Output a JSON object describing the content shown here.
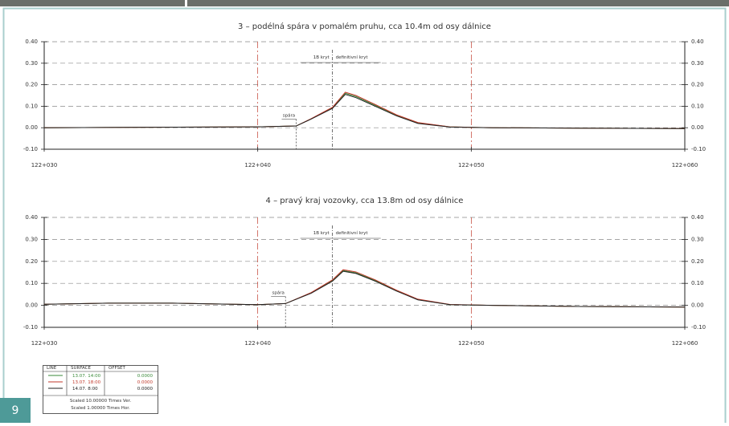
{
  "figure_number": "9",
  "chart_data": [
    {
      "type": "line",
      "title": "3 – podélná spára v pomalém pruhu, cca 10.4m od osy dálnice",
      "x": [
        122030,
        122035,
        122040,
        122041.8,
        122042.5,
        122043.5,
        122044.1,
        122044.6,
        122045.5,
        122046.5,
        122047.5,
        122049,
        122051,
        122055,
        122060
      ],
      "series": [
        {
          "name": "13.07. 14:00",
          "color": "#3a8a3a",
          "values": [
            0,
            0.002,
            0.004,
            0.008,
            0.041,
            0.092,
            0.16,
            0.145,
            0.104,
            0.058,
            0.022,
            0.004,
            0,
            -0.002,
            -0.004
          ]
        },
        {
          "name": "13.07. 18:00",
          "color": "#c0392b",
          "values": [
            0,
            0.002,
            0.004,
            0.008,
            0.042,
            0.095,
            0.165,
            0.15,
            0.108,
            0.06,
            0.024,
            0.004,
            0,
            -0.002,
            -0.004
          ]
        },
        {
          "name": "14.07. 8:00",
          "color": "#222222",
          "values": [
            0,
            0.002,
            0.004,
            0.008,
            0.04,
            0.09,
            0.155,
            0.14,
            0.1,
            0.055,
            0.02,
            0.003,
            0,
            -0.002,
            -0.004
          ]
        }
      ],
      "xlim": [
        122030,
        122060
      ],
      "xticks": [
        {
          "value": 122030,
          "label": "122+030"
        },
        {
          "value": 122040,
          "label": "122+040"
        },
        {
          "value": 122050,
          "label": "122+050"
        },
        {
          "value": 122060,
          "label": "122+060"
        }
      ],
      "ylim": [
        -0.1,
        0.4
      ],
      "yticks": [
        {
          "value": 0.4,
          "label": "0.40"
        },
        {
          "value": 0.3,
          "label": "0.30"
        },
        {
          "value": 0.2,
          "label": "0.20"
        },
        {
          "value": 0.1,
          "label": "0.10"
        },
        {
          "value": 0,
          "label": "0.00"
        },
        {
          "value": -0.1,
          "label": "-0.10"
        }
      ],
      "grid": true,
      "annotation": {
        "text": "spára",
        "x": 122041.8,
        "y": 0.04
      },
      "divider": {
        "x": 122043.5,
        "labels": [
          "1B kryt",
          "definitivní kryt"
        ]
      }
    },
    {
      "type": "line",
      "title": "4 – pravý kraj vozovky, cca 13.8m od osy dálnice",
      "x": [
        122030,
        122033,
        122036,
        122040,
        122041.3,
        122042.5,
        122043.5,
        122044.0,
        122044.6,
        122045.5,
        122046.5,
        122047.5,
        122049,
        122051,
        122055,
        122060
      ],
      "series": [
        {
          "name": "13.07. 14:00",
          "color": "#3a8a3a",
          "values": [
            0.005,
            0.01,
            0.01,
            0.003,
            0.008,
            0.057,
            0.113,
            0.158,
            0.148,
            0.113,
            0.067,
            0.026,
            0.003,
            0,
            -0.005,
            -0.008
          ]
        },
        {
          "name": "13.07. 18:00",
          "color": "#c0392b",
          "values": [
            0.005,
            0.01,
            0.01,
            0.003,
            0.008,
            0.058,
            0.116,
            0.162,
            0.152,
            0.116,
            0.069,
            0.028,
            0.004,
            0,
            -0.005,
            -0.008
          ]
        },
        {
          "name": "14.07. 8:00",
          "color": "#222222",
          "values": [
            0.005,
            0.01,
            0.01,
            0.003,
            0.008,
            0.055,
            0.11,
            0.155,
            0.145,
            0.11,
            0.065,
            0.025,
            0.003,
            0,
            -0.005,
            -0.008
          ]
        }
      ],
      "xlim": [
        122030,
        122060
      ],
      "xticks": [
        {
          "value": 122030,
          "label": "122+030"
        },
        {
          "value": 122040,
          "label": "122+040"
        },
        {
          "value": 122050,
          "label": "122+050"
        },
        {
          "value": 122060,
          "label": "122+060"
        }
      ],
      "ylim": [
        -0.1,
        0.4
      ],
      "yticks": [
        {
          "value": 0.4,
          "label": "0.40"
        },
        {
          "value": 0.3,
          "label": "0.30"
        },
        {
          "value": 0.2,
          "label": "0.20"
        },
        {
          "value": 0.1,
          "label": "0.10"
        },
        {
          "value": 0,
          "label": "0.00"
        },
        {
          "value": -0.1,
          "label": "-0.10"
        }
      ],
      "grid": true,
      "annotation": {
        "text": "spára",
        "x": 122041.3,
        "y": 0.04
      },
      "divider": {
        "x": 122043.5,
        "labels": [
          "1B kryt",
          "definitivní kryt"
        ]
      }
    }
  ],
  "legend": {
    "headers": [
      "LINE",
      "SURFACE",
      "OFFSET"
    ],
    "offsets": [
      "0.0000",
      "0.0000",
      "0.0000"
    ],
    "notes": [
      "Scaled 10.00000 Times Ver.",
      "Scaled 1.00000 Times Hor."
    ]
  }
}
